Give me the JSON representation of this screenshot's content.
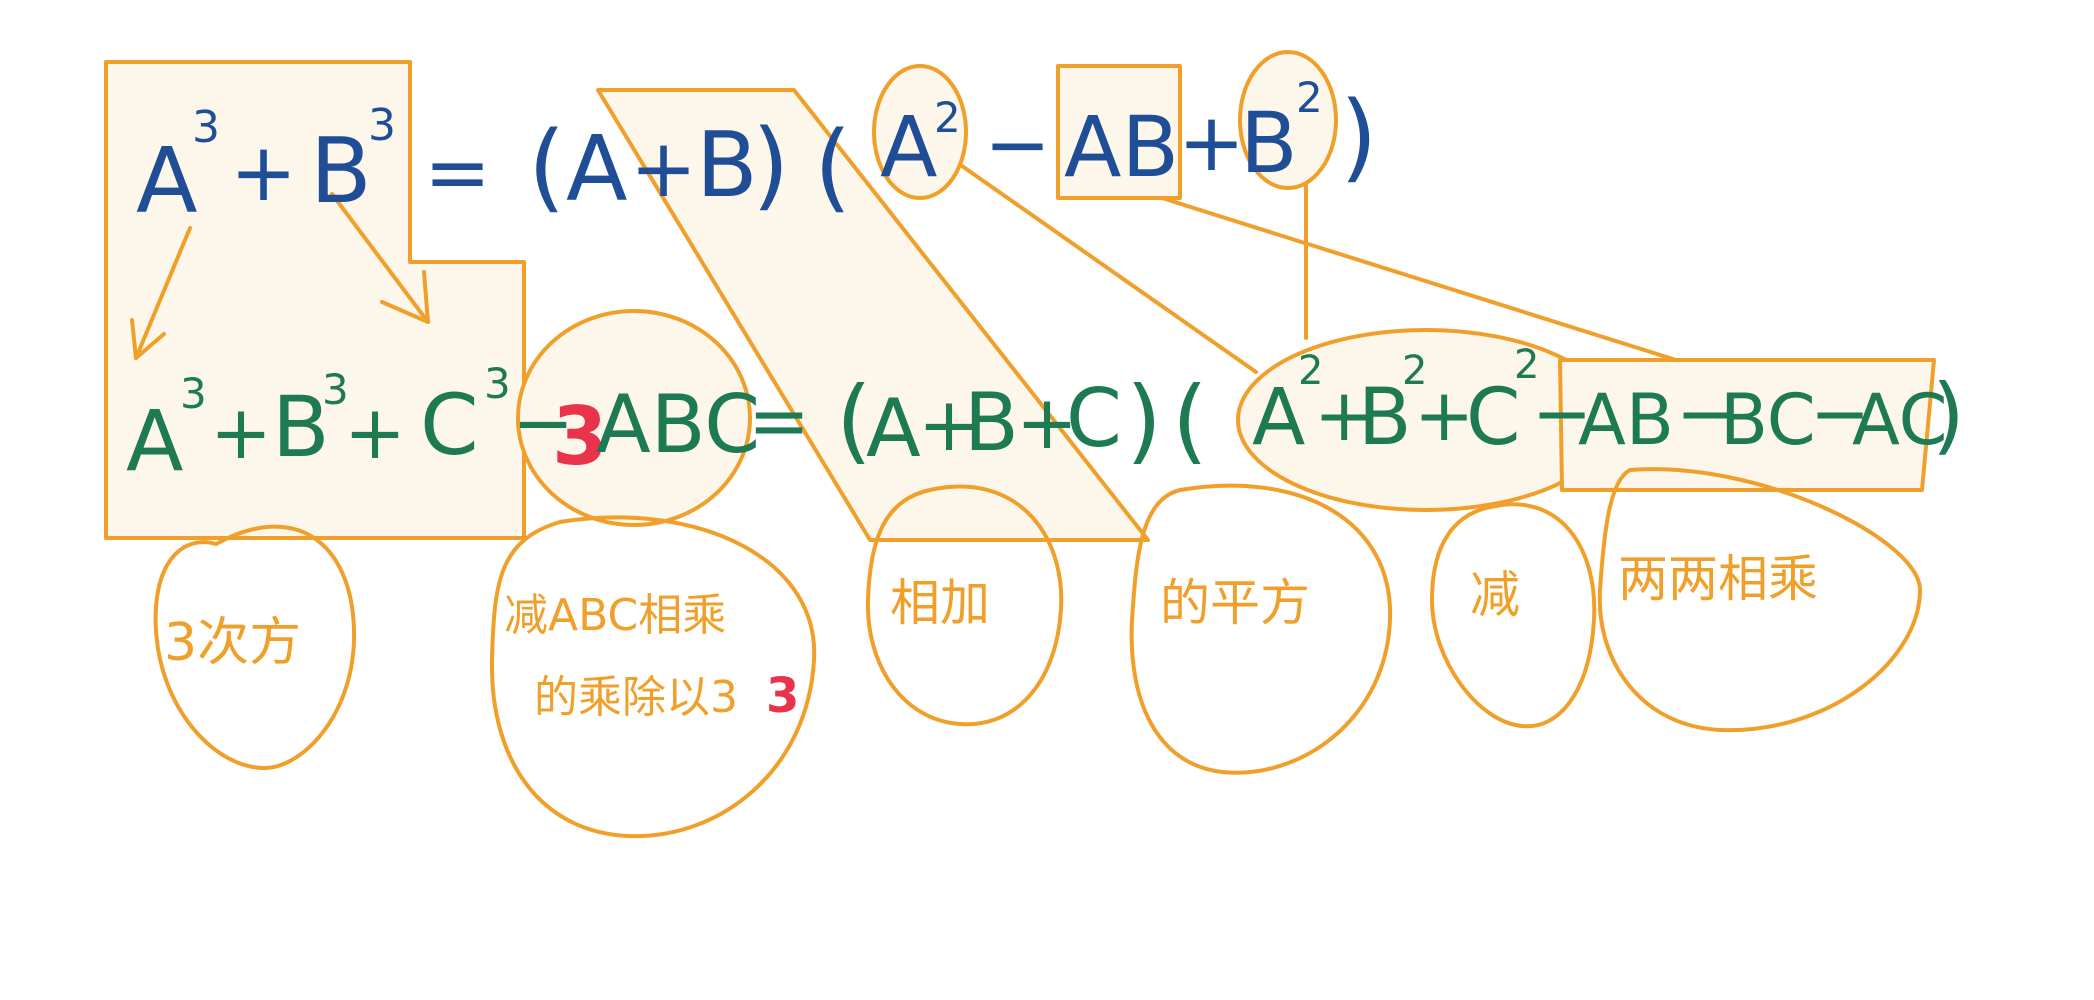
{
  "colors": {
    "background": "#ffffff",
    "formula_top": "#1f4e96",
    "formula_bottom": "#1d7a52",
    "annotation": "#f0a02a",
    "highlight_fill": "#fdf6eb",
    "emphasis": "#e8334a"
  },
  "top_formula": {
    "a": "A",
    "a_exp": "3",
    "plus1": "+",
    "b": "B",
    "b_exp": "3",
    "equals": "=",
    "open1": "(",
    "a2": "A",
    "plus2": "+",
    "b2": "B",
    "close1": ")",
    "open2": "(",
    "a3": "A",
    "a3_exp": "2",
    "minus1": "−",
    "ab": "AB",
    "plus3": "+",
    "b3": "B",
    "b3_exp": "2",
    "close2": ")"
  },
  "bottom_formula": {
    "a": "A",
    "a_exp": "3",
    "plus1": "+",
    "b": "B",
    "b_exp": "3",
    "plus2": "+",
    "c": "C",
    "c_exp": "3",
    "minus1": "−",
    "coef": "3",
    "abc": "ABC",
    "equals": "=",
    "open1": "(",
    "a2": "A",
    "plus3": "+",
    "b2": "B",
    "plus4": "+",
    "c2": "C",
    "close1": ")",
    "open2": "(",
    "a3": "A",
    "a3_exp": "2",
    "plus5": "+",
    "b3": "B",
    "b3_exp": "2",
    "plus6": "+",
    "c3": "C",
    "c3_exp": "2",
    "minus2": "−",
    "ab": "AB",
    "minus3": "−",
    "bc": "BC",
    "minus4": "−",
    "ac": "AC",
    "close2": ")"
  },
  "annotations": {
    "cubed": "3次方",
    "subtract_abc_line1": "减ABC相乘",
    "subtract_abc_line2": "的乘除以3",
    "subtract_abc_coef": "3",
    "add": "相加",
    "square": "的平方",
    "minus": "减",
    "pairwise_product": "两两相乘"
  }
}
